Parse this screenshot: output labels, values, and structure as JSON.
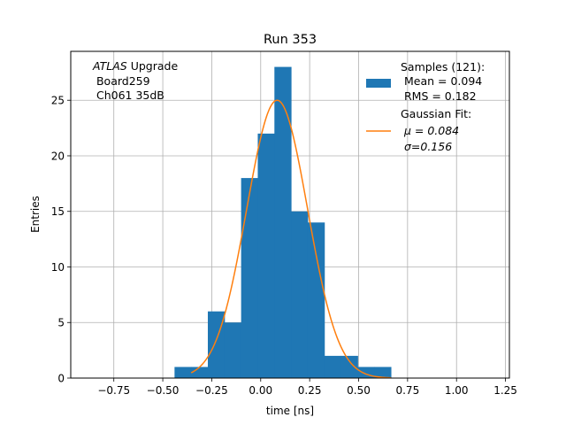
{
  "chart_data": {
    "type": "bar",
    "title": "Run 353",
    "xlabel": "time [ns]",
    "ylabel": "Entries",
    "xlim": [
      -0.97,
      1.27
    ],
    "ylim": [
      0,
      29.4
    ],
    "grid": true,
    "xticks": [
      -0.75,
      -0.5,
      -0.25,
      0.0,
      0.25,
      0.5,
      0.75,
      1.0,
      1.25
    ],
    "xtick_labels": [
      "−0.75",
      "−0.50",
      "−0.25",
      "0.00",
      "0.25",
      "0.50",
      "0.75",
      "1.00",
      "1.25"
    ],
    "yticks": [
      0,
      5,
      10,
      15,
      20,
      25
    ],
    "ytick_labels": [
      "0",
      "5",
      "10",
      "15",
      "20",
      "25"
    ],
    "histogram": {
      "bin_edges": [
        -0.44,
        -0.355,
        -0.27,
        -0.185,
        -0.1,
        -0.015,
        0.07,
        0.155,
        0.24,
        0.325,
        0.41,
        0.495,
        0.58,
        0.665,
        0.75
      ],
      "counts": [
        1,
        1,
        6,
        5,
        18,
        22,
        28,
        15,
        14,
        2,
        2,
        1,
        1,
        0
      ],
      "color": "#1f77b4"
    },
    "fit": {
      "type": "gaussian",
      "amplitude": 25,
      "mu": 0.084,
      "sigma": 0.156,
      "x_range": [
        -0.355,
        0.665
      ],
      "color": "#ff7f0e"
    },
    "legend": {
      "placement": "top-right",
      "entries": [
        {
          "kind": "patch",
          "lines": [
            "Samples (121):",
            " Mean = 0.094",
            " RMS = 0.182"
          ]
        },
        {
          "kind": "line",
          "lines": [
            "Gaussian Fit:",
            " μ = 0.084",
            " σ=0.156"
          ]
        }
      ]
    },
    "annotation": {
      "placement": "top-left",
      "brand": "ATLAS",
      "brand_suffix": " Upgrade",
      "lines": [
        " Board259",
        " Ch061 35dB"
      ]
    }
  }
}
